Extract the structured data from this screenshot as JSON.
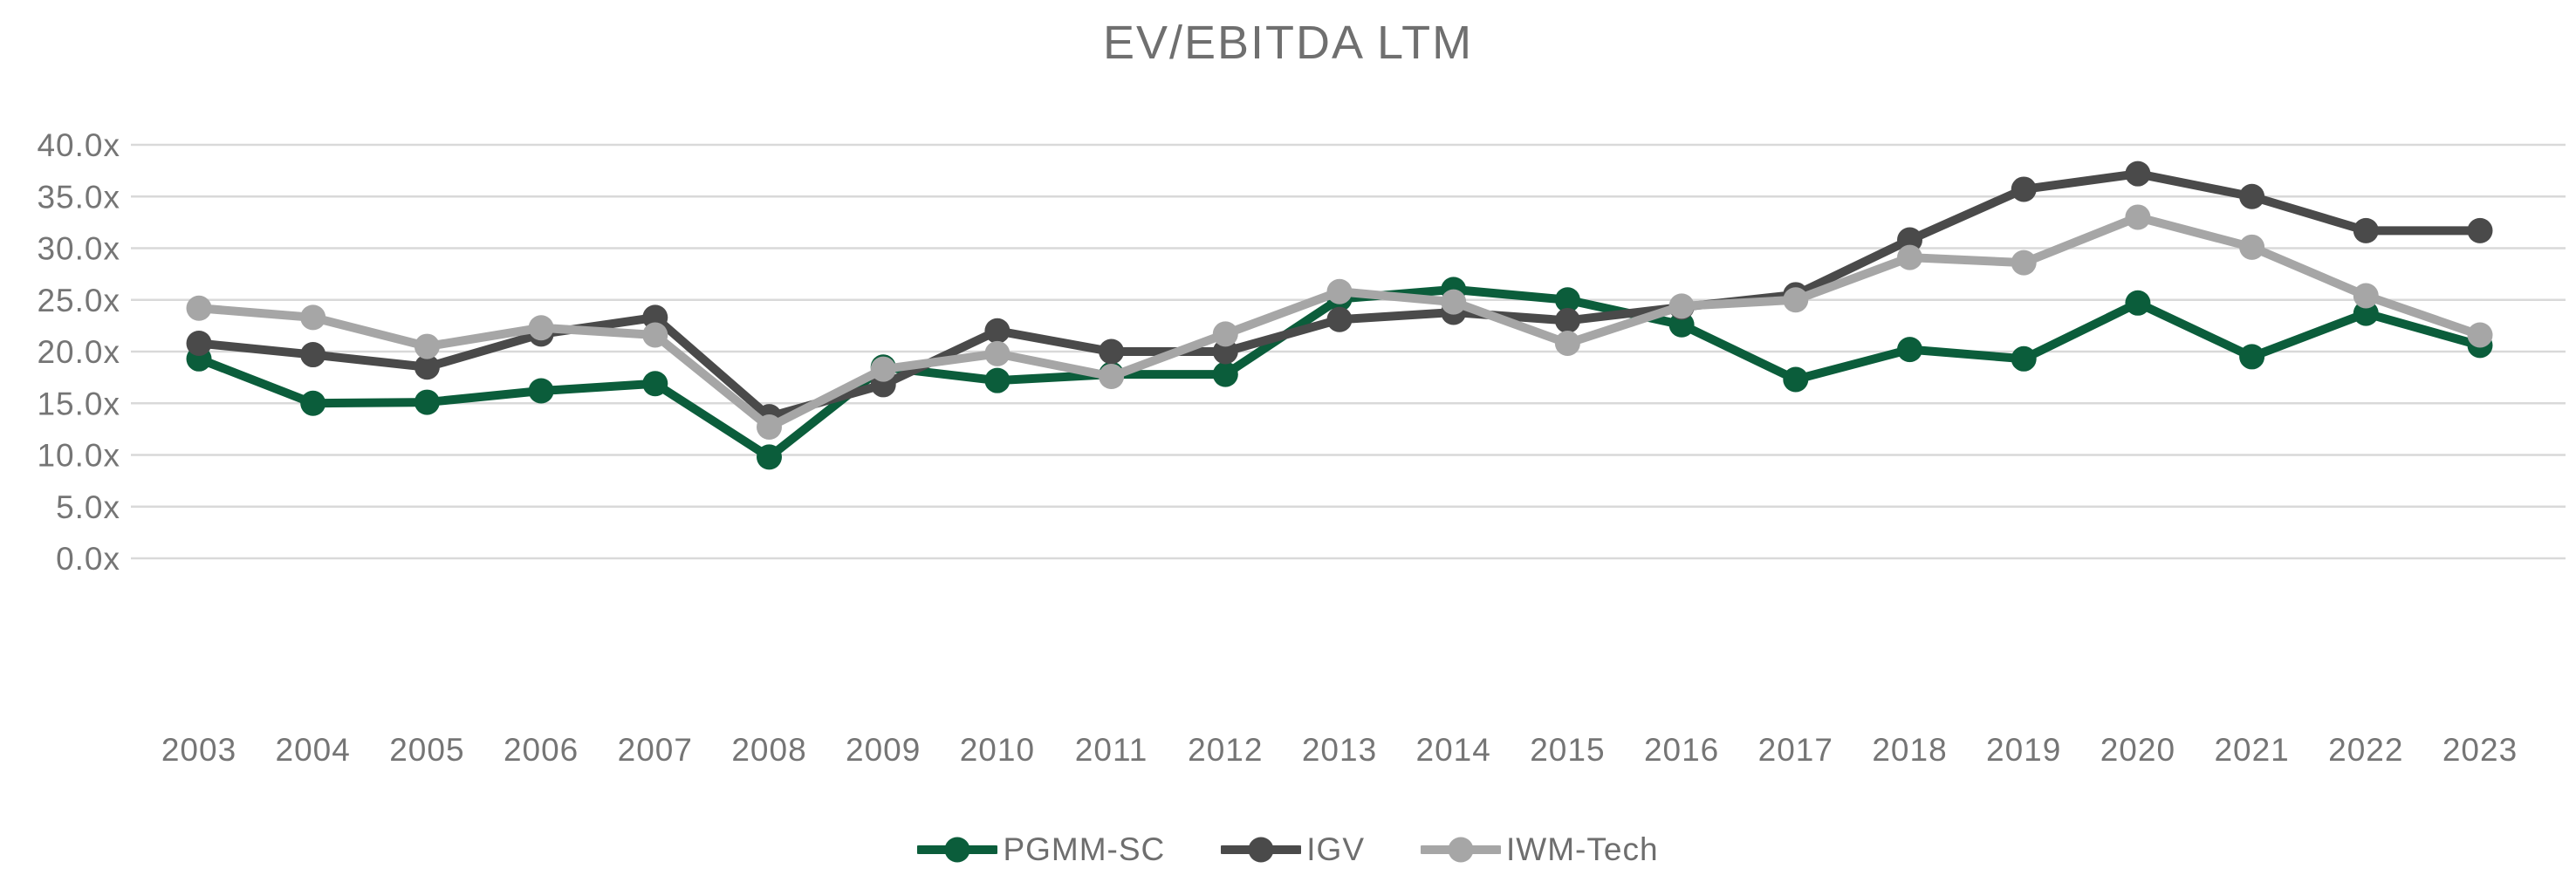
{
  "title": "EV/EBITDA LTM",
  "colors": {
    "grid": "#d9d9d9",
    "axis_text": "#757575",
    "title_text": "#6f6f6f",
    "series_green": "#0b5d3b",
    "series_dark_gray": "#4a4a4a",
    "series_light_gray": "#a6a6a6"
  },
  "chart_data": {
    "type": "line",
    "title": "EV/EBITDA LTM",
    "x": [
      2003,
      2004,
      2005,
      2006,
      2007,
      2008,
      2009,
      2010,
      2011,
      2012,
      2013,
      2014,
      2015,
      2016,
      2017,
      2018,
      2019,
      2020,
      2021,
      2022,
      2023
    ],
    "x_tick_labels": [
      "2003",
      "2004",
      "2005",
      "2006",
      "2007",
      "2008",
      "2009",
      "2010",
      "2011",
      "2012",
      "2013",
      "2014",
      "2015",
      "2016",
      "2017",
      "2018",
      "2019",
      "2020",
      "2021",
      "2022",
      "2023"
    ],
    "y_tick_labels": [
      "0.0x",
      "5.0x",
      "10.0x",
      "15.0x",
      "20.0x",
      "25.0x",
      "30.0x",
      "35.0x",
      "40.0x"
    ],
    "y_tick_values": [
      0,
      5,
      10,
      15,
      20,
      25,
      30,
      35,
      40
    ],
    "ylim": [
      0,
      40
    ],
    "grid": true,
    "legend_position": "bottom",
    "series": [
      {
        "name": "PGMM-SC",
        "color": "#0b5d3b",
        "values": [
          19.3,
          15.0,
          15.1,
          16.2,
          16.9,
          9.8,
          18.5,
          17.2,
          17.8,
          17.8,
          25.1,
          26.0,
          25.0,
          22.6,
          17.3,
          20.2,
          19.3,
          24.7,
          19.5,
          23.7,
          20.6
        ]
      },
      {
        "name": "IGV",
        "color": "#4a4a4a",
        "values": [
          20.8,
          19.7,
          18.5,
          21.7,
          23.3,
          13.7,
          16.8,
          22.0,
          20.0,
          20.0,
          23.1,
          23.8,
          23.0,
          24.3,
          25.5,
          30.8,
          35.7,
          37.2,
          35.0,
          31.7,
          31.7
        ]
      },
      {
        "name": "IWM-Tech",
        "color": "#a6a6a6",
        "values": [
          24.2,
          23.3,
          20.5,
          22.3,
          21.6,
          12.7,
          18.3,
          19.8,
          17.6,
          21.7,
          25.8,
          24.8,
          20.8,
          24.4,
          25.0,
          29.1,
          28.6,
          33.0,
          30.1,
          25.4,
          21.6
        ]
      }
    ]
  }
}
